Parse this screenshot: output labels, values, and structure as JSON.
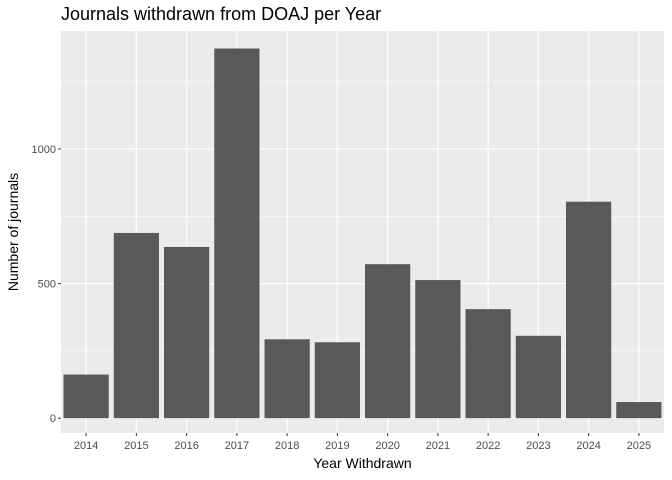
{
  "chart_data": {
    "type": "bar",
    "title": "Journals withdrawn from DOAJ per Year",
    "xlabel": "Year Withdrawn",
    "ylabel": "Number of journals",
    "categories": [
      "2014",
      "2015",
      "2016",
      "2017",
      "2018",
      "2019",
      "2020",
      "2021",
      "2022",
      "2023",
      "2024",
      "2025"
    ],
    "values": [
      162,
      688,
      636,
      1373,
      293,
      282,
      572,
      513,
      405,
      306,
      804,
      60
    ],
    "yticks": [
      0,
      500,
      1000
    ],
    "ylim": [
      -55,
      1438
    ],
    "grid": true,
    "bar_color": "#595959",
    "panel_color": "#ebebeb",
    "grid_color": "#ffffff"
  }
}
